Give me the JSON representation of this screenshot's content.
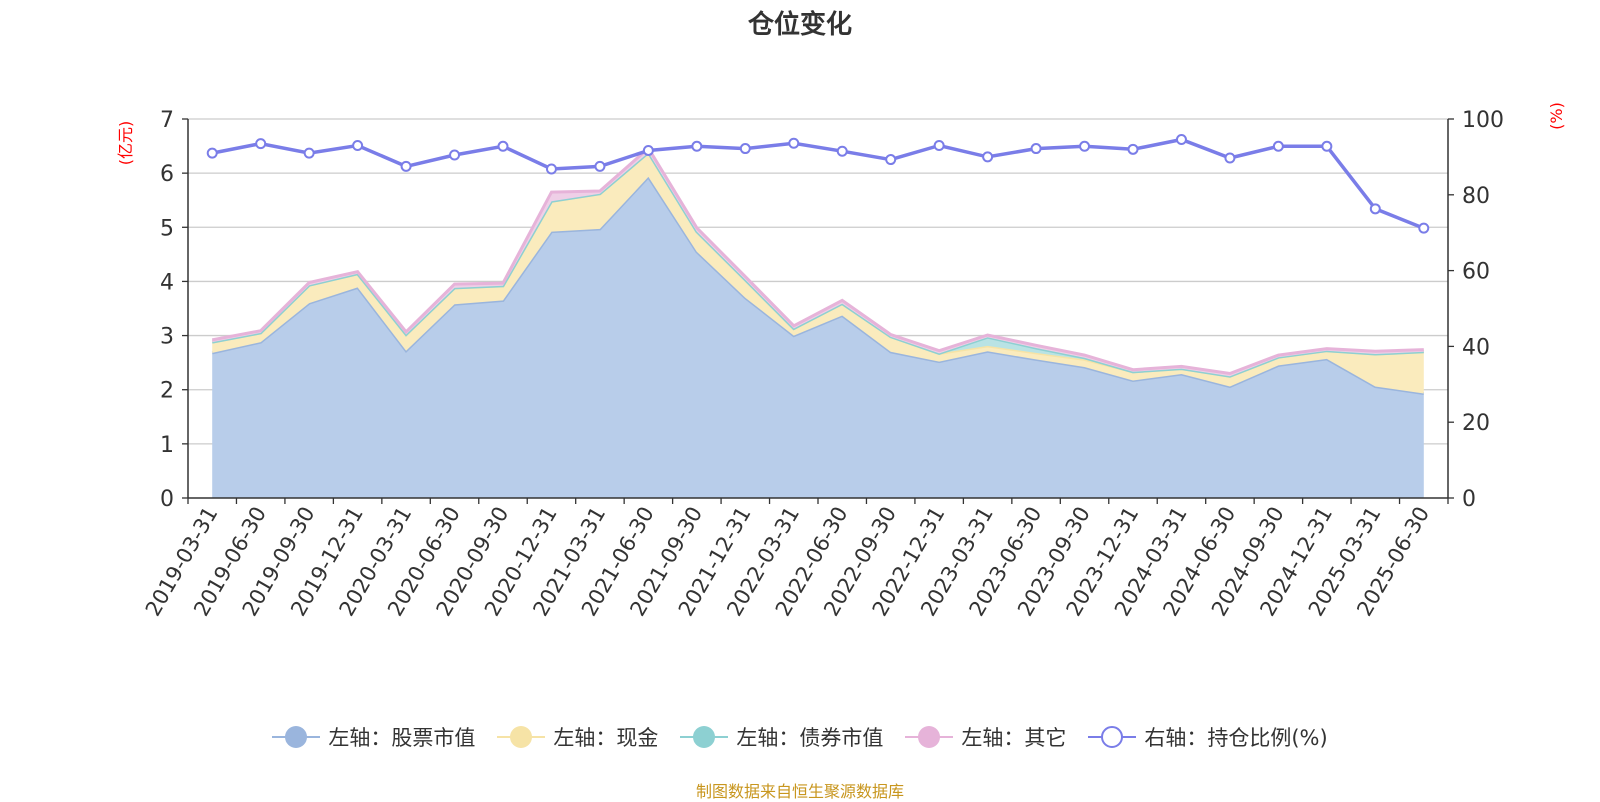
{
  "title": "仓位变化",
  "source_note": "制图数据来自恒生聚源数据库",
  "chart_data": {
    "type": "area",
    "title": "仓位变化",
    "categories": [
      "2019-03-31",
      "2019-06-30",
      "2019-09-30",
      "2019-12-31",
      "2020-03-31",
      "2020-06-30",
      "2020-09-30",
      "2020-12-31",
      "2021-03-31",
      "2021-06-30",
      "2021-09-30",
      "2021-12-31",
      "2022-03-31",
      "2022-06-30",
      "2022-09-30",
      "2022-12-31",
      "2023-03-31",
      "2023-06-30",
      "2023-09-30",
      "2023-12-31",
      "2024-03-31",
      "2024-06-30",
      "2024-09-30",
      "2024-12-31",
      "2025-03-31",
      "2025-06-30"
    ],
    "y_left": {
      "label": "(亿元)",
      "ylim": [
        0,
        7
      ],
      "ticks": [
        "0",
        "1",
        "2",
        "3",
        "4",
        "5",
        "6",
        "7"
      ]
    },
    "y_right": {
      "label": "(%)",
      "ylim": [
        0,
        100
      ],
      "ticks": [
        "0",
        "20",
        "40",
        "60",
        "80",
        "100"
      ]
    },
    "grid": true,
    "legend_position": "bottom",
    "series": [
      {
        "name": "左轴：股票市值",
        "axis": "left",
        "stack": true,
        "color": "#9ab5dd",
        "fill": "#b8cdea",
        "values": [
          2.68,
          2.88,
          3.6,
          3.89,
          2.72,
          3.58,
          3.65,
          4.92,
          4.97,
          5.93,
          4.55,
          3.7,
          3.0,
          3.37,
          2.7,
          2.52,
          2.71,
          2.56,
          2.42,
          2.17,
          2.29,
          2.06,
          2.45,
          2.57,
          2.06,
          1.93
        ]
      },
      {
        "name": "左轴：现金",
        "axis": "left",
        "stack": true,
        "color": "#f6e3a6",
        "fill": "#faebbd",
        "values": [
          0.2,
          0.17,
          0.33,
          0.25,
          0.3,
          0.3,
          0.27,
          0.56,
          0.65,
          0.45,
          0.37,
          0.33,
          0.13,
          0.22,
          0.28,
          0.15,
          0.1,
          0.12,
          0.14,
          0.16,
          0.1,
          0.19,
          0.15,
          0.15,
          0.6,
          0.77
        ]
      },
      {
        "name": "左轴：债券市值",
        "axis": "left",
        "stack": true,
        "color": "#8dd0d2",
        "fill": "#b9e3e4",
        "values": [
          0,
          0,
          0,
          0,
          0,
          0,
          0,
          0,
          0,
          0,
          0,
          0,
          0,
          0,
          0,
          0,
          0.16,
          0.09,
          0.03,
          0,
          0,
          0,
          0,
          0,
          0,
          0
        ]
      },
      {
        "name": "左轴：其它",
        "axis": "left",
        "stack": true,
        "color": "#e6b3d9",
        "fill": "#efcfe7",
        "values": [
          0.04,
          0.04,
          0.05,
          0.04,
          0.05,
          0.07,
          0.05,
          0.17,
          0.05,
          0.08,
          0.07,
          0.06,
          0.05,
          0.06,
          0.04,
          0.05,
          0.04,
          0.05,
          0.05,
          0.04,
          0.04,
          0.05,
          0.04,
          0.04,
          0.05,
          0.04
        ]
      },
      {
        "name": "右轴：持仓比例(%)",
        "axis": "right",
        "stack": false,
        "color": "#7a7de8",
        "marker": "hollow-circle",
        "values": [
          91,
          93.5,
          91,
          93,
          87.5,
          90.5,
          92.8,
          86.8,
          87.5,
          91.7,
          92.8,
          92.2,
          93.6,
          91.5,
          89.3,
          93,
          90,
          92.2,
          92.8,
          92,
          94.6,
          89.7,
          92.8,
          92.8,
          76.3,
          71.2
        ]
      }
    ]
  }
}
